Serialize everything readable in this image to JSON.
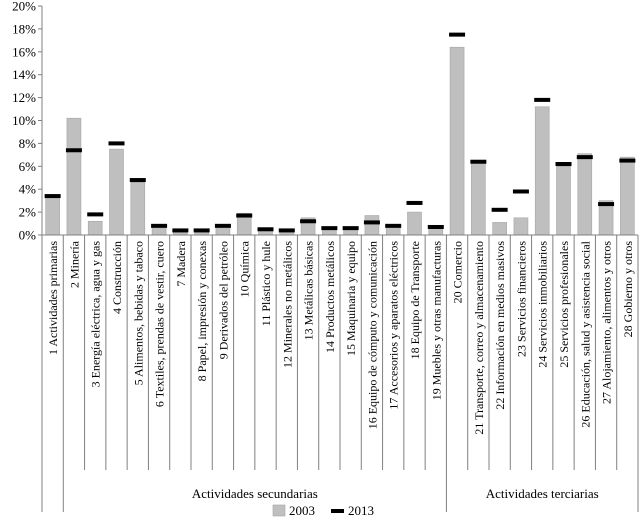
{
  "chart_data": {
    "type": "bar",
    "ylim": [
      0,
      20
    ],
    "y_ticks": [
      "0%",
      "2%",
      "4%",
      "6%",
      "8%",
      "10%",
      "12%",
      "14%",
      "16%",
      "18%",
      "20%"
    ],
    "grid": false,
    "legend_position": "bottom",
    "categories": [
      "1 Actividades primarias",
      "2 Minería",
      "3 Energía eléctrica, agua y gas",
      "4 Construcción",
      "5 Alimentos, bebidas y tabaco",
      "6 Textiles, prendas de vestir, cuero",
      "7 Madera",
      "8 Papel, impresión y conexas",
      "9 Derivados del petróleo",
      "10 Química",
      "11 Plástico y hule",
      "12 Minerales no metálicos",
      "13 Metálicas básicas",
      "14 Productos metálicos",
      "15 Maquinaria y equipo",
      "16 Equipo de cómputo y comunicación",
      "17 Accesorios y aparatos eléctricos",
      "18 Equipo de Transporte",
      "19 Muebles y otras manufacturas",
      "20 Comercio",
      "21 Transporte, correo y almacenamiento",
      "22 Información en medios masivos",
      "23 Servicios financieros",
      "24 Servicios inmobiliarios",
      "25 Servicios profesionales",
      "26 Educación, salud y asistencia social",
      "27 Alojamiento, alimentos y otros",
      "28 Gobierno y otros"
    ],
    "groups": [
      {
        "label": "",
        "start": 0,
        "end": 0
      },
      {
        "label": "Actividades secundarias",
        "start": 1,
        "end": 18
      },
      {
        "label": "Actividades terciarias",
        "start": 19,
        "end": 27
      }
    ],
    "series": [
      {
        "name": "2003",
        "type": "bar",
        "color": "#bfbfbf",
        "values": [
          3.3,
          10.2,
          1.2,
          7.5,
          4.6,
          0.9,
          0.3,
          0.4,
          0.7,
          1.9,
          0.4,
          0.5,
          1.5,
          0.6,
          0.5,
          1.7,
          0.9,
          2.0,
          0.6,
          16.4,
          6.3,
          1.1,
          1.5,
          11.2,
          6.0,
          7.1,
          3.0,
          6.8
        ]
      },
      {
        "name": "2013",
        "type": "marker",
        "color": "#000000",
        "values": [
          3.4,
          7.4,
          1.8,
          8.0,
          4.8,
          0.8,
          0.4,
          0.4,
          0.8,
          1.7,
          0.5,
          0.4,
          1.2,
          0.6,
          0.6,
          1.1,
          0.8,
          2.8,
          0.7,
          17.5,
          6.4,
          2.2,
          3.8,
          11.8,
          6.2,
          6.8,
          2.7,
          6.5
        ]
      }
    ]
  }
}
